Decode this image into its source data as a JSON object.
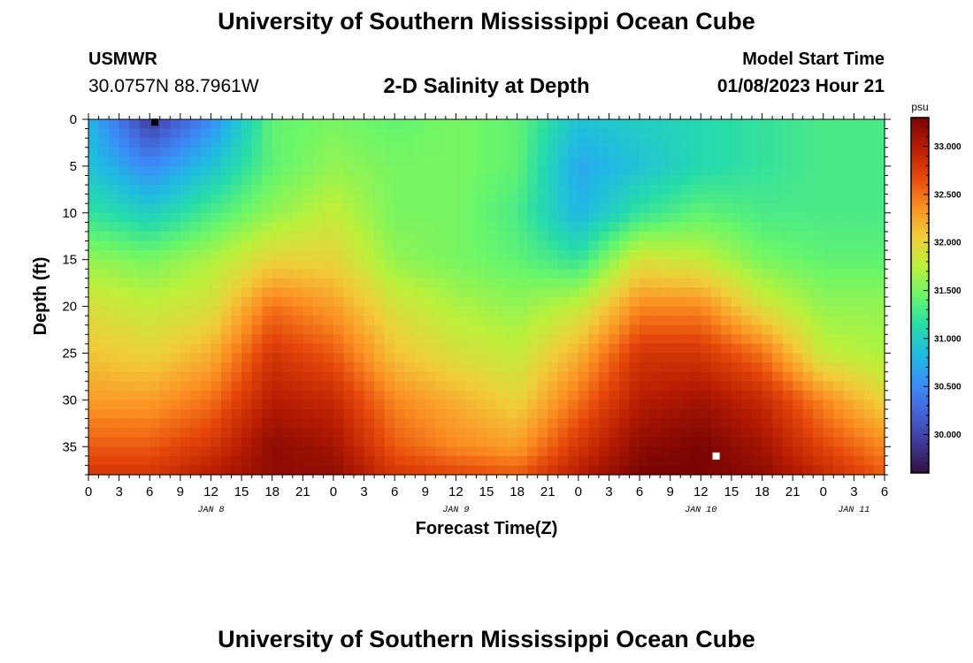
{
  "header": {
    "main_title": "University of Southern Mississippi Ocean Cube",
    "station_code": "USMWR",
    "station_coords": "30.0757N  88.7961W",
    "plot_subtitle": "2-D Salinity at Depth",
    "model_label": "Model Start Time",
    "model_time": "01/08/2023 Hour 21"
  },
  "footer": {
    "title": "University of Southern Mississippi Ocean Cube"
  },
  "chart_data": {
    "type": "heatmap",
    "title": "2-D Salinity at Depth",
    "xlabel": "Forecast Time(Z)",
    "ylabel": "Depth (ft)",
    "x_tick_labels": [
      "0",
      "3",
      "6",
      "9",
      "12",
      "15",
      "18",
      "21",
      "0",
      "3",
      "6",
      "9",
      "12",
      "15",
      "18",
      "21",
      "0",
      "3",
      "6",
      "9",
      "12",
      "15",
      "18",
      "21",
      "0",
      "3",
      "6"
    ],
    "x_range_hours": [
      0,
      78
    ],
    "day_labels": [
      {
        "label": "JAN 8",
        "hour": 12
      },
      {
        "label": "JAN 9",
        "hour": 36
      },
      {
        "label": "JAN 10",
        "hour": 60
      },
      {
        "label": "JAN 11",
        "hour": 75
      }
    ],
    "y_tick_labels": [
      "0",
      "5",
      "10",
      "15",
      "20",
      "25",
      "30",
      "35"
    ],
    "ylim": [
      0,
      38
    ],
    "y_inverted": true,
    "colorbar": {
      "unit": "psu",
      "tick_labels": [
        "30.000",
        "30.500",
        "31.000",
        "31.500",
        "32.000",
        "32.500",
        "33.000"
      ],
      "range": [
        29.6,
        33.3
      ]
    },
    "colormap": [
      "#30123b",
      "#3e3996",
      "#4563d6",
      "#3b8df7",
      "#1fbce0",
      "#28dca8",
      "#6bf669",
      "#bdf03a",
      "#f1cb3a",
      "#fb8f22",
      "#e4460a",
      "#b71d02",
      "#7a0403"
    ],
    "hour_columns": [
      0,
      6,
      12,
      18,
      24,
      30,
      36,
      42,
      48,
      54,
      60,
      66,
      72,
      78
    ],
    "depth_rows": [
      0,
      5,
      10,
      15,
      20,
      25,
      30,
      35,
      38
    ],
    "salinity_grid": [
      [
        30.8,
        29.9,
        30.5,
        31.4,
        31.5,
        31.4,
        31.5,
        31.4,
        30.9,
        31.0,
        31.1,
        31.2,
        31.3,
        31.3
      ],
      [
        30.9,
        30.5,
        30.9,
        31.4,
        31.6,
        31.5,
        31.5,
        31.4,
        30.7,
        30.9,
        31.1,
        31.2,
        31.3,
        31.3
      ],
      [
        31.2,
        31.0,
        31.3,
        31.6,
        31.8,
        31.5,
        31.5,
        31.3,
        30.8,
        31.2,
        31.4,
        31.3,
        31.3,
        31.3
      ],
      [
        31.6,
        31.5,
        31.7,
        32.0,
        32.0,
        31.6,
        31.5,
        31.4,
        31.2,
        31.9,
        31.8,
        31.5,
        31.4,
        31.4
      ],
      [
        31.9,
        31.8,
        31.9,
        32.5,
        32.3,
        31.9,
        31.7,
        31.6,
        31.8,
        32.4,
        32.4,
        31.9,
        31.6,
        31.6
      ],
      [
        32.1,
        32.0,
        32.2,
        32.8,
        32.6,
        32.1,
        31.9,
        31.8,
        32.2,
        32.8,
        32.8,
        32.5,
        31.8,
        31.7
      ],
      [
        32.3,
        32.3,
        32.5,
        33.0,
        32.9,
        32.4,
        32.2,
        32.0,
        32.5,
        33.0,
        33.1,
        32.9,
        32.4,
        32.0
      ],
      [
        32.6,
        32.6,
        32.8,
        33.2,
        33.1,
        32.6,
        32.4,
        32.3,
        32.8,
        33.2,
        33.3,
        33.1,
        32.7,
        32.4
      ],
      [
        32.8,
        32.8,
        33.0,
        33.2,
        33.2,
        32.8,
        32.7,
        32.6,
        33.0,
        33.3,
        33.3,
        33.2,
        32.9,
        32.6
      ]
    ],
    "markers": [
      {
        "hour": 6.5,
        "depth": 0.3,
        "color": "#000000"
      },
      {
        "hour": 61.5,
        "depth": 36,
        "color": "#ffffff"
      }
    ]
  }
}
